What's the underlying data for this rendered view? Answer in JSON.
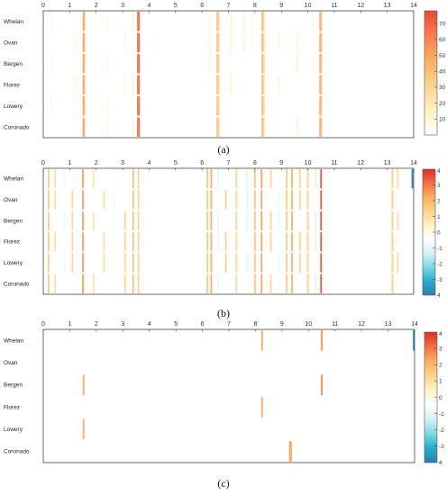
{
  "chart_data": [
    {
      "type": "heatmap",
      "panel_label": "(a)",
      "rows": [
        "Whelan",
        "Ovan",
        "Bergen",
        "Florez",
        "Lowery",
        "Coronado"
      ],
      "xlim": [
        0,
        14
      ],
      "x_ticks": [
        "0",
        "1",
        "2",
        "3",
        "4",
        "5",
        "6",
        "7",
        "8",
        "9",
        "10",
        "11",
        "12",
        "13",
        "14"
      ],
      "colorbar": {
        "min": 0,
        "max": 78,
        "ticks": [
          10,
          20,
          30,
          40,
          50,
          60,
          70
        ],
        "tick_labels": [
          "10",
          "20",
          "30",
          "40",
          "50",
          "60",
          "70"
        ],
        "colors": [
          "#ffffff",
          "#fff2c2",
          "#fdd38a",
          "#fdae61",
          "#f97d4e",
          "#e8473a"
        ]
      },
      "events": [
        {
          "x": 1.52,
          "rows": [
            0,
            1,
            2,
            3,
            4,
            5
          ],
          "value": 55
        },
        {
          "x": 1.55,
          "rows": [
            0,
            1,
            2,
            3,
            4,
            5
          ],
          "value": 40
        },
        {
          "x": 3.58,
          "rows": [
            0,
            1,
            2,
            3,
            4,
            5
          ],
          "value": 70
        },
        {
          "x": 3.62,
          "rows": [
            0,
            1,
            2,
            3,
            4,
            5
          ],
          "value": 62
        },
        {
          "x": 6.58,
          "rows": [
            0,
            1,
            2,
            3,
            4,
            5
          ],
          "value": 40
        },
        {
          "x": 6.63,
          "rows": [
            0,
            1,
            2,
            3,
            4,
            5
          ],
          "value": 28
        },
        {
          "x": 8.28,
          "rows": [
            0,
            1,
            2,
            3,
            4,
            5
          ],
          "value": 42
        },
        {
          "x": 8.33,
          "rows": [
            0,
            1,
            2,
            3,
            4,
            5
          ],
          "value": 30
        },
        {
          "x": 10.47,
          "rows": [
            0,
            1,
            2,
            3,
            4,
            5
          ],
          "value": 55
        },
        {
          "x": 10.51,
          "rows": [
            0,
            1,
            2,
            3,
            4,
            5
          ],
          "value": 35
        },
        {
          "x": 0.3,
          "rows": [
            0,
            2,
            4
          ],
          "value": 8
        },
        {
          "x": 1.2,
          "rows": [
            1,
            3
          ],
          "value": 10
        },
        {
          "x": 2.4,
          "rows": [
            0,
            2,
            4,
            5
          ],
          "value": 9
        },
        {
          "x": 3.1,
          "rows": [
            1,
            3
          ],
          "value": 8
        },
        {
          "x": 3.4,
          "rows": [
            0,
            3,
            5
          ],
          "value": 11
        },
        {
          "x": 6.3,
          "rows": [
            0,
            1,
            2
          ],
          "value": 10
        },
        {
          "x": 7.1,
          "rows": [
            0,
            1,
            3
          ],
          "value": 12
        },
        {
          "x": 7.6,
          "rows": [
            0,
            1
          ],
          "value": 10
        },
        {
          "x": 7.9,
          "rows": [
            0,
            1
          ],
          "value": 9
        },
        {
          "x": 8.9,
          "rows": [
            1,
            3
          ],
          "value": 10
        },
        {
          "x": 9.6,
          "rows": [
            1,
            2,
            5
          ],
          "value": 12
        },
        {
          "x": 10.2,
          "rows": [
            0,
            2
          ],
          "value": 9
        }
      ]
    },
    {
      "type": "heatmap",
      "panel_label": "(b)",
      "rows": [
        "Whelan",
        "Ovan",
        "Bergen",
        "Florez",
        "Lowery",
        "Coronado"
      ],
      "xlim": [
        0,
        14
      ],
      "x_ticks": [
        "0",
        "1",
        "2",
        "3",
        "4",
        "5",
        "6",
        "7",
        "8",
        "9",
        "10",
        "11",
        "12",
        "13",
        "14"
      ],
      "colorbar": {
        "min": -4,
        "max": 4,
        "ticks": [
          3,
          2,
          1,
          0,
          -1,
          -2,
          -3
        ],
        "tick_labels": [
          "3",
          "2",
          "1",
          "0",
          "-1",
          "-2",
          "-3"
        ],
        "end_labels": [
          "4",
          "4"
        ],
        "colors": [
          "#2c7bb6",
          "#22aec9",
          "#7fd8e3",
          "#d6f0f4",
          "#ffffff",
          "#fff3c4",
          "#fdd38a",
          "#fdae61",
          "#f46d43",
          "#d73027"
        ]
      },
      "events": [
        {
          "x": 0.2,
          "rows": [
            0,
            1,
            2,
            3,
            4,
            5
          ],
          "value": 1.5
        },
        {
          "x": 0.45,
          "rows": [
            0,
            1,
            3,
            5
          ],
          "value": 1.0
        },
        {
          "x": 0.8,
          "rows": [
            0,
            2,
            4
          ],
          "value": -0.8
        },
        {
          "x": 1.1,
          "rows": [
            1,
            2,
            3,
            4
          ],
          "value": 1.2
        },
        {
          "x": 1.5,
          "rows": [
            0,
            1,
            2,
            3,
            4,
            5
          ],
          "value": 2.4
        },
        {
          "x": 1.9,
          "rows": [
            0,
            2,
            5
          ],
          "value": 0.9
        },
        {
          "x": 2.3,
          "rows": [
            1,
            3,
            4
          ],
          "value": 1.0
        },
        {
          "x": 2.7,
          "rows": [
            0,
            1,
            2
          ],
          "value": -0.7
        },
        {
          "x": 3.1,
          "rows": [
            2,
            3,
            4,
            5
          ],
          "value": 1.1
        },
        {
          "x": 3.4,
          "rows": [
            0,
            1,
            2,
            3,
            4,
            5
          ],
          "value": 1.7
        },
        {
          "x": 3.6,
          "rows": [
            0,
            1,
            2,
            3,
            4,
            5
          ],
          "value": 1.3
        },
        {
          "x": 6.2,
          "rows": [
            0,
            1,
            2,
            3,
            4,
            5
          ],
          "value": 1.6
        },
        {
          "x": 6.35,
          "rows": [
            0,
            1,
            2,
            3,
            4,
            5
          ],
          "value": 2.2
        },
        {
          "x": 6.6,
          "rows": [
            0,
            2,
            3,
            5
          ],
          "value": -0.9
        },
        {
          "x": 6.9,
          "rows": [
            1,
            3,
            4
          ],
          "value": 1.4
        },
        {
          "x": 7.3,
          "rows": [
            0,
            1,
            2,
            3,
            4,
            5
          ],
          "value": 1.2
        },
        {
          "x": 7.7,
          "rows": [
            0,
            1,
            2,
            4
          ],
          "value": -1.0
        },
        {
          "x": 8.0,
          "rows": [
            0,
            1,
            2,
            3,
            4,
            5
          ],
          "value": 1.6
        },
        {
          "x": 8.25,
          "rows": [
            0,
            1,
            2,
            3,
            4,
            5
          ],
          "value": 2.3
        },
        {
          "x": 8.6,
          "rows": [
            0,
            2,
            3,
            5
          ],
          "value": 1.2
        },
        {
          "x": 8.9,
          "rows": [
            1,
            2,
            4
          ],
          "value": -0.9
        },
        {
          "x": 9.2,
          "rows": [
            0,
            1,
            2,
            3,
            4,
            5
          ],
          "value": 1.5
        },
        {
          "x": 9.4,
          "rows": [
            0,
            1,
            2,
            3,
            4,
            5
          ],
          "value": 2.1
        },
        {
          "x": 9.7,
          "rows": [
            0,
            1,
            3,
            4
          ],
          "value": 1.3
        },
        {
          "x": 10.0,
          "rows": [
            0,
            1,
            2,
            3,
            4,
            5
          ],
          "value": 1.4
        },
        {
          "x": 10.3,
          "rows": [
            0,
            2,
            3,
            5
          ],
          "value": -1.1
        },
        {
          "x": 10.5,
          "rows": [
            0,
            1,
            2,
            3,
            4,
            5
          ],
          "value": 3.4
        },
        {
          "x": 13.2,
          "rows": [
            0,
            1,
            2,
            3,
            4,
            5
          ],
          "value": 1.5
        },
        {
          "x": 13.4,
          "rows": [
            0,
            2,
            4
          ],
          "value": 1.0
        },
        {
          "x": 13.95,
          "rows": [
            0
          ],
          "value": -3.8
        }
      ]
    },
    {
      "type": "heatmap",
      "panel_label": "(c)",
      "rows": [
        "Whelan",
        "Ovan",
        "Bergen",
        "Florez",
        "Lowery",
        "Coronado"
      ],
      "xlim": [
        0,
        14
      ],
      "x_ticks": [
        "0",
        "1",
        "2",
        "3",
        "4",
        "5",
        "6",
        "7",
        "8",
        "9",
        "10",
        "11",
        "12",
        "13",
        "14"
      ],
      "colorbar": {
        "min": -4,
        "max": 4,
        "ticks": [
          3,
          2,
          1,
          0,
          -1,
          -2,
          -3
        ],
        "tick_labels": [
          "3",
          "2",
          "1",
          "0",
          "-1",
          "-2",
          "-3"
        ],
        "end_labels": [
          "4",
          "4"
        ],
        "colors": [
          "#2c7bb6",
          "#22aec9",
          "#7fd8e3",
          "#d6f0f4",
          "#ffffff",
          "#fff3c4",
          "#fdd38a",
          "#fdae61",
          "#f46d43",
          "#d73027"
        ]
      },
      "events": [
        {
          "x": 8.25,
          "rows": [
            0
          ],
          "value": 2.3
        },
        {
          "x": 10.5,
          "rows": [
            0
          ],
          "value": 2.6
        },
        {
          "x": 13.97,
          "rows": [
            0
          ],
          "value": -3.8
        },
        {
          "x": 1.52,
          "rows": [
            2
          ],
          "value": 2.3
        },
        {
          "x": 10.5,
          "rows": [
            2
          ],
          "value": 2.7
        },
        {
          "x": 8.25,
          "rows": [
            3
          ],
          "value": 2.2
        },
        {
          "x": 1.52,
          "rows": [
            4
          ],
          "value": 2.2
        },
        {
          "x": 9.3,
          "rows": [
            5
          ],
          "value": 2.4
        },
        {
          "x": 9.35,
          "rows": [
            5
          ],
          "value": 2.0
        }
      ]
    }
  ]
}
